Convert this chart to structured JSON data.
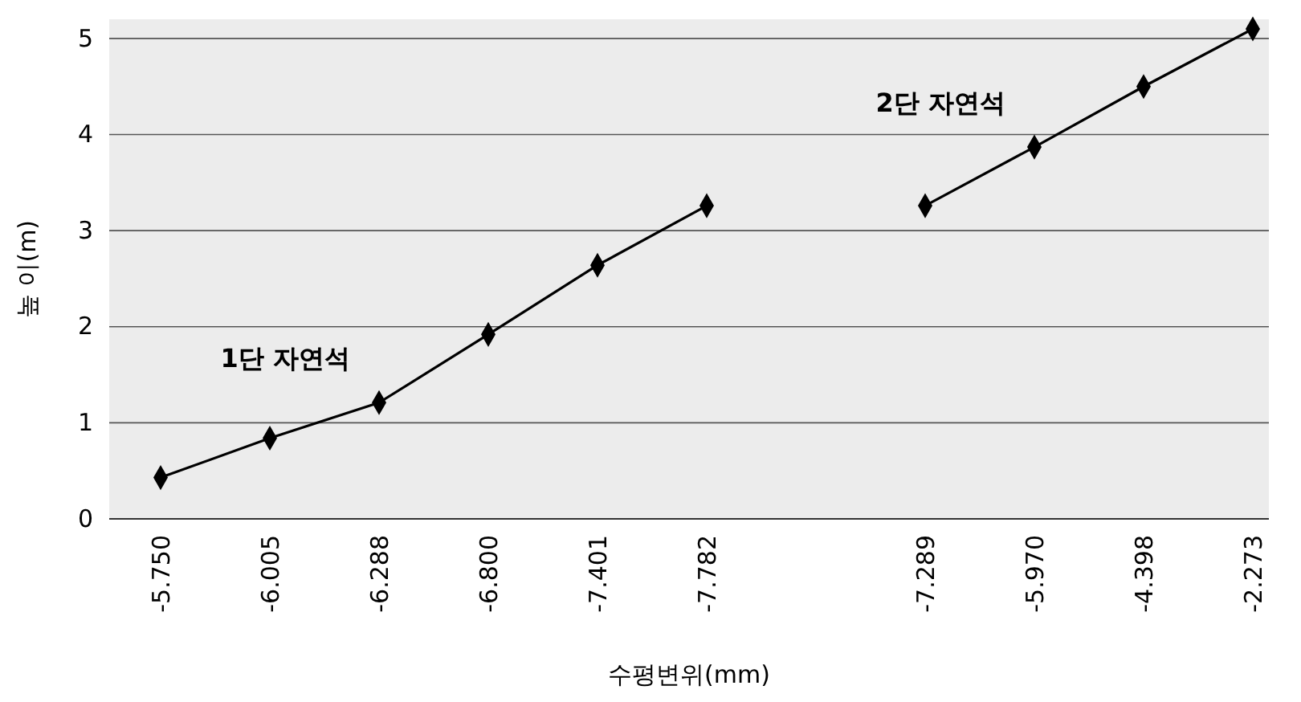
{
  "chart_data": {
    "type": "line",
    "xlabel": "수평변위(mm)",
    "ylabel": "높 이(m)",
    "categories": [
      "-5.750",
      "-6.005",
      "-6.288",
      "-6.800",
      "-7.401",
      "-7.782",
      null,
      "-7.289",
      "-5.970",
      "-4.398",
      "-2.273"
    ],
    "series": [
      {
        "name": "1단 자연석",
        "color": "#000000",
        "values": [
          0.43,
          0.84,
          1.21,
          1.92,
          2.64,
          3.26,
          null,
          null,
          null,
          null,
          null
        ]
      },
      {
        "name": "2단 자연석",
        "color": "#000000",
        "values": [
          null,
          null,
          null,
          null,
          null,
          null,
          null,
          3.26,
          3.87,
          4.5,
          5.1
        ]
      }
    ],
    "ylim": [
      0,
      5.2
    ],
    "yticks": [
      0,
      1,
      2,
      3,
      4,
      5
    ],
    "grid": "y",
    "legend": false,
    "marker": "diamond",
    "line_style": "solid"
  }
}
